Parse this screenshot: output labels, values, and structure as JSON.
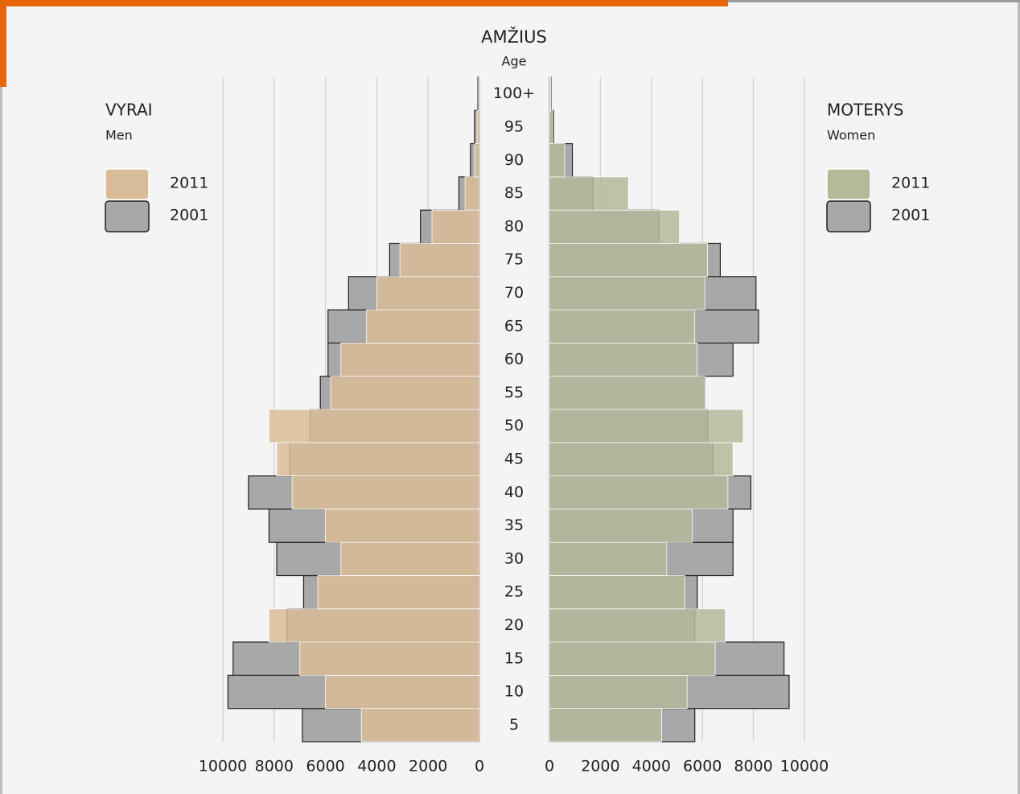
{
  "chart_data": {
    "type": "pyramid",
    "title": "AMŽIUS",
    "subtitle": "Age",
    "categories": [
      "5",
      "10",
      "15",
      "20",
      "25",
      "30",
      "35",
      "40",
      "45",
      "50",
      "55",
      "60",
      "65",
      "70",
      "75",
      "80",
      "85",
      "90",
      "95",
      "100+"
    ],
    "left": {
      "title": "VYRAI",
      "subtitle": "Men",
      "xlim": [
        0,
        10000
      ],
      "xticks": [
        10000,
        8000,
        6000,
        4000,
        2000,
        0
      ],
      "series": [
        {
          "name": "2011",
          "color": "#d8bc98",
          "values": [
            4600,
            6000,
            7000,
            8200,
            6300,
            5400,
            6000,
            7300,
            7900,
            8200,
            5800,
            5400,
            4400,
            4000,
            3100,
            1850,
            560,
            190,
            95,
            30
          ]
        },
        {
          "name": "2001",
          "color": "#a8a8a8",
          "values": [
            6900,
            9800,
            9600,
            7500,
            6850,
            7900,
            8200,
            9000,
            7400,
            6600,
            6200,
            5900,
            5900,
            5100,
            3500,
            2300,
            800,
            350,
            190,
            60
          ]
        }
      ]
    },
    "right": {
      "title": "MOTERYS",
      "subtitle": "Women",
      "xlim": [
        0,
        10000
      ],
      "xticks": [
        0,
        2000,
        4000,
        6000,
        8000,
        10000
      ],
      "series": [
        {
          "name": "2011",
          "color": "#b4b99a",
          "values": [
            4400,
            5400,
            6500,
            6900,
            5300,
            4600,
            5600,
            7000,
            7200,
            7600,
            6100,
            5800,
            5700,
            6100,
            6200,
            5100,
            3100,
            600,
            130,
            50
          ]
        },
        {
          "name": "2001",
          "color": "#a8a8a8",
          "values": [
            5700,
            9400,
            9200,
            5700,
            5800,
            7200,
            7200,
            7900,
            6400,
            6200,
            6100,
            7200,
            8200,
            8100,
            6700,
            4300,
            1700,
            900,
            160,
            60
          ]
        }
      ]
    }
  }
}
